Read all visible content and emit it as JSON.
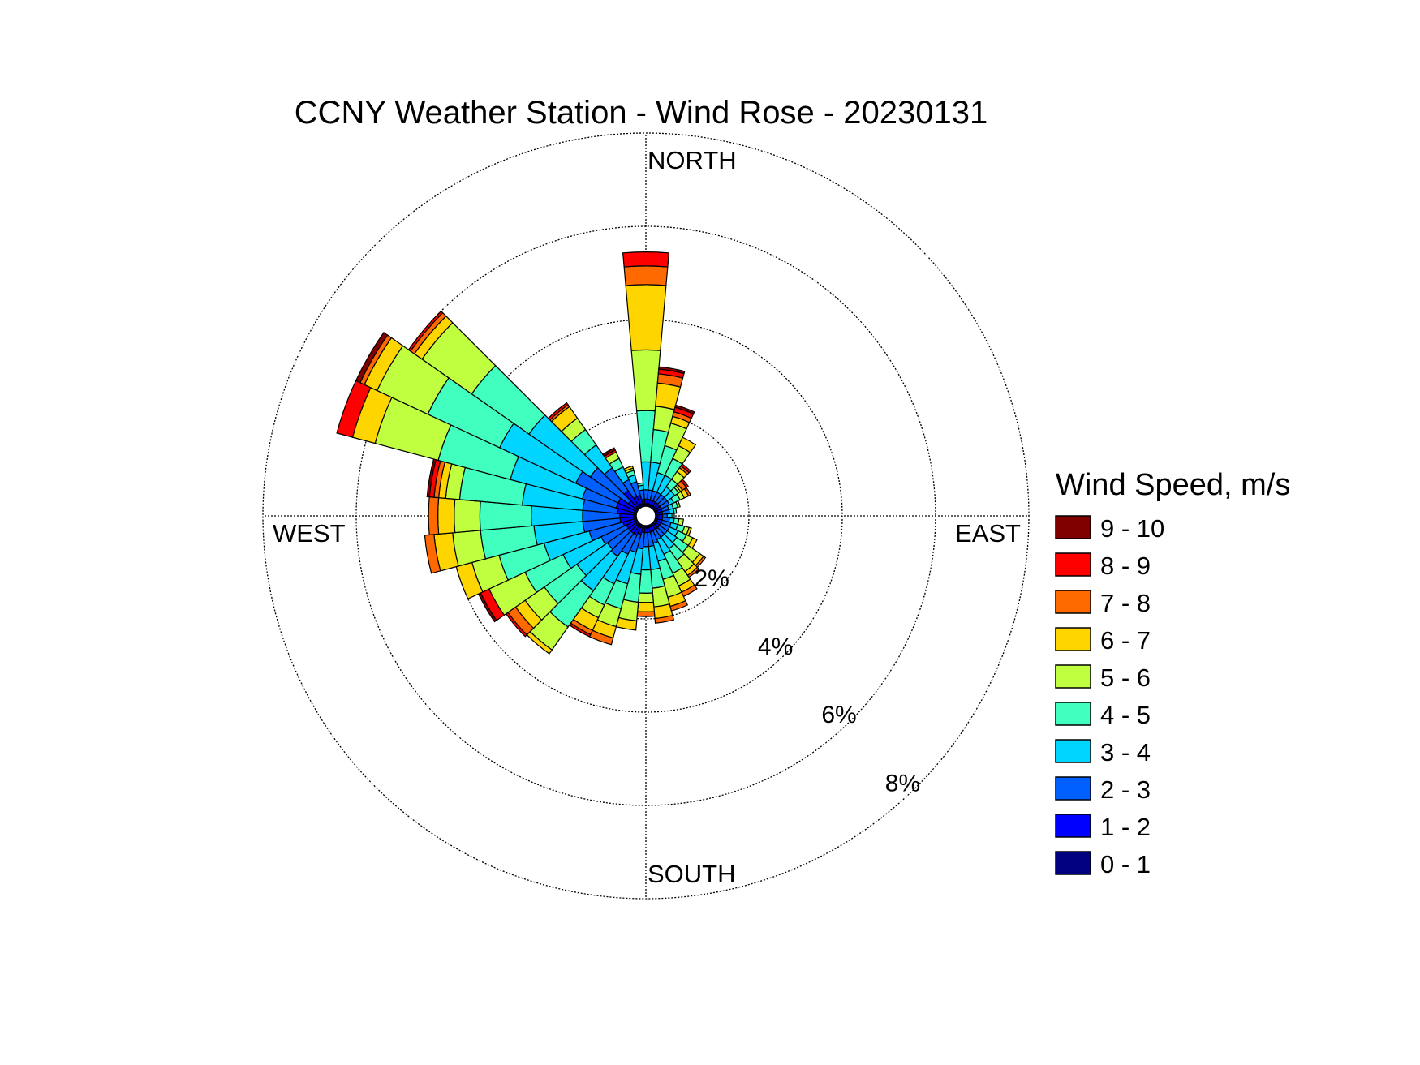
{
  "chart_data": {
    "type": "wind-rose",
    "title": "CCNY Weather Station - Wind Rose - 20230131",
    "directions": {
      "north": "NORTH",
      "south": "SOUTH",
      "east": "EAST",
      "west": "WEST"
    },
    "radial_axis": {
      "ticks": [
        2,
        4,
        6,
        8
      ],
      "labels": [
        "2%",
        "4%",
        "6%",
        "8%"
      ],
      "unit": "%",
      "max": 8
    },
    "legend": {
      "title": "Wind Speed, m/s",
      "bins": [
        {
          "label": "9 - 10",
          "color": "#800000"
        },
        {
          "label": "8 - 9",
          "color": "#ff0000"
        },
        {
          "label": "7 - 8",
          "color": "#ff6a00"
        },
        {
          "label": "6 - 7",
          "color": "#ffd500"
        },
        {
          "label": "5 - 6",
          "color": "#bfff3f"
        },
        {
          "label": "4 - 5",
          "color": "#40ffbf"
        },
        {
          "label": "3 - 4",
          "color": "#00d5ff"
        },
        {
          "label": "2 - 3",
          "color": "#0060ff"
        },
        {
          "label": "1 - 2",
          "color": "#0000ff"
        },
        {
          "label": "0 - 1",
          "color": "#000080"
        }
      ]
    },
    "sector_width_deg": 10,
    "bin_order": "0 - 1 to 9 - 10 (cumulative outward)",
    "sectors": [
      {
        "direction_deg": 0,
        "counts_pct": [
          0.05,
          0.1,
          0.2,
          0.6,
          1.1,
          1.3,
          1.4,
          0.4,
          0.3,
          0.0
        ]
      },
      {
        "direction_deg": 10,
        "counts_pct": [
          0.05,
          0.1,
          0.2,
          0.6,
          0.7,
          0.5,
          0.5,
          0.2,
          0.1,
          0.05
        ]
      },
      {
        "direction_deg": 20,
        "counts_pct": [
          0.05,
          0.1,
          0.2,
          0.4,
          0.6,
          0.5,
          0.15,
          0.1,
          0.1,
          0.05
        ]
      },
      {
        "direction_deg": 30,
        "counts_pct": [
          0.05,
          0.1,
          0.2,
          0.4,
          0.4,
          0.3,
          0.2,
          0.0,
          0.0,
          0.0
        ]
      },
      {
        "direction_deg": 40,
        "counts_pct": [
          0.05,
          0.1,
          0.2,
          0.2,
          0.2,
          0.2,
          0.1,
          0.05,
          0.05,
          0.0
        ]
      },
      {
        "direction_deg": 50,
        "counts_pct": [
          0.05,
          0.1,
          0.2,
          0.2,
          0.1,
          0.05,
          0.05,
          0.1,
          0.05,
          0.0
        ]
      },
      {
        "direction_deg": 60,
        "counts_pct": [
          0.05,
          0.1,
          0.2,
          0.1,
          0.15,
          0.1,
          0.1,
          0.05,
          0.0,
          0.0
        ]
      },
      {
        "direction_deg": 70,
        "counts_pct": [
          0.05,
          0.1,
          0.15,
          0.1,
          0.1,
          0.05,
          0.0,
          0.0,
          0.0,
          0.0
        ]
      },
      {
        "direction_deg": 80,
        "counts_pct": [
          0.05,
          0.1,
          0.15,
          0.1,
          0.05,
          0.0,
          0.0,
          0.0,
          0.0,
          0.0
        ]
      },
      {
        "direction_deg": 90,
        "counts_pct": [
          0.05,
          0.1,
          0.1,
          0.1,
          0.05,
          0.0,
          0.0,
          0.0,
          0.0,
          0.0
        ]
      },
      {
        "direction_deg": 100,
        "counts_pct": [
          0.05,
          0.1,
          0.15,
          0.1,
          0.1,
          0.1,
          0.0,
          0.0,
          0.0,
          0.0
        ]
      },
      {
        "direction_deg": 110,
        "counts_pct": [
          0.05,
          0.1,
          0.2,
          0.15,
          0.15,
          0.1,
          0.05,
          0.0,
          0.0,
          0.0
        ]
      },
      {
        "direction_deg": 120,
        "counts_pct": [
          0.05,
          0.1,
          0.2,
          0.2,
          0.2,
          0.15,
          0.1,
          0.0,
          0.0,
          0.0
        ]
      },
      {
        "direction_deg": 130,
        "counts_pct": [
          0.05,
          0.1,
          0.2,
          0.25,
          0.3,
          0.3,
          0.1,
          0.05,
          0.0,
          0.0
        ]
      },
      {
        "direction_deg": 140,
        "counts_pct": [
          0.05,
          0.1,
          0.2,
          0.3,
          0.3,
          0.3,
          0.1,
          0.05,
          0.0,
          0.0
        ]
      },
      {
        "direction_deg": 150,
        "counts_pct": [
          0.05,
          0.1,
          0.2,
          0.35,
          0.45,
          0.3,
          0.15,
          0.1,
          0.0,
          0.0
        ]
      },
      {
        "direction_deg": 160,
        "counts_pct": [
          0.05,
          0.1,
          0.25,
          0.4,
          0.4,
          0.4,
          0.2,
          0.1,
          0.0,
          0.0
        ]
      },
      {
        "direction_deg": 170,
        "counts_pct": [
          0.05,
          0.1,
          0.3,
          0.5,
          0.4,
          0.4,
          0.25,
          0.1,
          0.0,
          0.0
        ]
      },
      {
        "direction_deg": 180,
        "counts_pct": [
          0.05,
          0.1,
          0.3,
          0.5,
          0.5,
          0.2,
          0.2,
          0.1,
          0.0,
          0.0
        ]
      },
      {
        "direction_deg": 190,
        "counts_pct": [
          0.05,
          0.1,
          0.35,
          0.55,
          0.6,
          0.4,
          0.2,
          0.0,
          0.0,
          0.0
        ]
      },
      {
        "direction_deg": 200,
        "counts_pct": [
          0.05,
          0.15,
          0.4,
          0.7,
          0.55,
          0.4,
          0.25,
          0.15,
          0.0,
          0.0
        ]
      },
      {
        "direction_deg": 210,
        "counts_pct": [
          0.05,
          0.2,
          0.45,
          0.7,
          0.5,
          0.3,
          0.3,
          0.1,
          0.05,
          0.0
        ]
      },
      {
        "direction_deg": 220,
        "counts_pct": [
          0.05,
          0.2,
          0.6,
          0.9,
          0.95,
          0.6,
          0.1,
          0.0,
          0.0,
          0.0
        ]
      },
      {
        "direction_deg": 230,
        "counts_pct": [
          0.05,
          0.2,
          0.55,
          0.8,
          0.85,
          0.5,
          0.25,
          0.2,
          0.05,
          0.0
        ]
      },
      {
        "direction_deg": 240,
        "counts_pct": [
          0.05,
          0.2,
          0.6,
          0.9,
          0.9,
          0.85,
          0.0,
          0.0,
          0.2,
          0.05
        ]
      },
      {
        "direction_deg": 250,
        "counts_pct": [
          0.05,
          0.25,
          0.75,
          1.0,
          1.0,
          0.6,
          0.35,
          0.0,
          0.0,
          0.0
        ]
      },
      {
        "direction_deg": 260,
        "counts_pct": [
          0.05,
          0.3,
          0.8,
          1.05,
          1.15,
          0.6,
          0.4,
          0.2,
          0.0,
          0.0
        ]
      },
      {
        "direction_deg": 270,
        "counts_pct": [
          0.05,
          0.3,
          0.8,
          1.1,
          1.1,
          0.55,
          0.35,
          0.2,
          0.0,
          0.0
        ]
      },
      {
        "direction_deg": 280,
        "counts_pct": [
          0.05,
          0.35,
          0.75,
          1.3,
          1.35,
          0.3,
          0.15,
          0.1,
          0.1,
          0.05
        ]
      },
      {
        "direction_deg": 290,
        "counts_pct": [
          0.05,
          0.4,
          0.75,
          1.6,
          1.6,
          1.4,
          0.5,
          0.0,
          0.35,
          0.0
        ]
      },
      {
        "direction_deg": 300,
        "counts_pct": [
          0.05,
          0.4,
          1.0,
          1.8,
          1.7,
          1.2,
          0.3,
          0.1,
          0.0,
          0.1
        ]
      },
      {
        "direction_deg": 310,
        "counts_pct": [
          0.05,
          0.2,
          1.0,
          1.6,
          1.5,
          1.3,
          0.2,
          0.1,
          0.05,
          0.0
        ]
      },
      {
        "direction_deg": 320,
        "counts_pct": [
          0.05,
          0.4,
          0.6,
          0.6,
          0.4,
          0.3,
          0.3,
          0.05,
          0.05,
          0.0
        ]
      },
      {
        "direction_deg": 330,
        "counts_pct": [
          0.05,
          0.2,
          0.4,
          0.3,
          0.2,
          0.15,
          0.0,
          0.0,
          0.05,
          0.05
        ]
      },
      {
        "direction_deg": 340,
        "counts_pct": [
          0.05,
          0.2,
          0.3,
          0.15,
          0.1,
          0.05,
          0.05,
          0.0,
          0.0,
          0.0
        ]
      },
      {
        "direction_deg": 350,
        "counts_pct": [
          0.05,
          0.1,
          0.2,
          0.1,
          0.05,
          0.0,
          0.0,
          0.0,
          0.0,
          0.0
        ]
      }
    ]
  }
}
